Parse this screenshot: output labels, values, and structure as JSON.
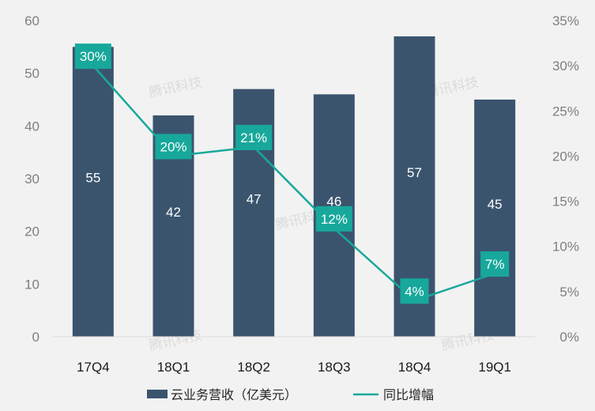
{
  "chart_data": {
    "type": "bar",
    "categories": [
      "17Q4",
      "18Q1",
      "18Q2",
      "18Q3",
      "18Q4",
      "19Q1"
    ],
    "series": [
      {
        "name": "云业务营收（亿美元）",
        "kind": "bar",
        "axis": "left",
        "values": [
          55,
          42,
          47,
          46,
          57,
          45
        ],
        "labels": [
          "55",
          "42",
          "47",
          "46",
          "57",
          "45"
        ]
      },
      {
        "name": "同比增幅",
        "kind": "line",
        "axis": "right",
        "values": [
          30,
          20,
          21,
          12,
          4,
          7
        ],
        "labels": [
          "30%",
          "20%",
          "21%",
          "12%",
          "4%",
          "7%"
        ]
      }
    ],
    "left_axis": {
      "range": [
        0,
        60
      ],
      "ticks": [
        "0",
        "10",
        "20",
        "30",
        "40",
        "50",
        "60"
      ]
    },
    "right_axis": {
      "range": [
        0,
        35
      ],
      "unit": "%",
      "ticks": [
        "0%",
        "5%",
        "10%",
        "15%",
        "20%",
        "25%",
        "30%",
        "35%"
      ]
    },
    "grid": false,
    "legend_position": "bottom"
  },
  "colors": {
    "bar": "#3b546e",
    "line": "#17a89b",
    "label_box": "#17a89b",
    "background": "#f2f2f2"
  },
  "watermark": "腾讯科技"
}
